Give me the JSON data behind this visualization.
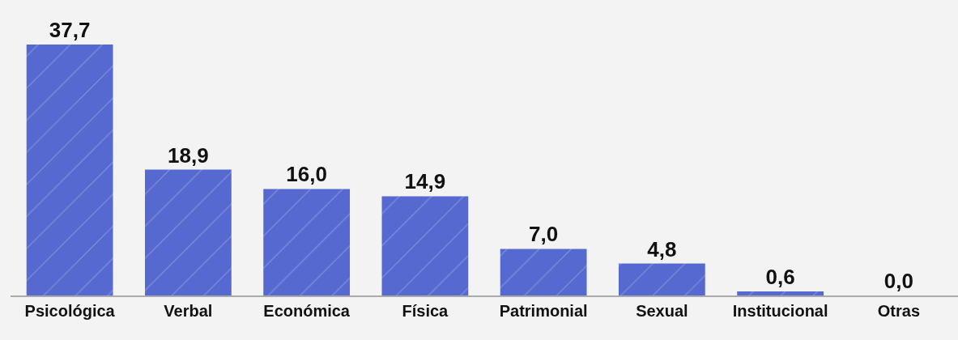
{
  "chart_data": {
    "type": "bar",
    "categories": [
      "Psicológica",
      "Verbal",
      "Económica",
      "Física",
      "Patrimonial",
      "Sexual",
      "Institucional",
      "Otras"
    ],
    "values": [
      37.7,
      18.9,
      16.0,
      14.9,
      7.0,
      4.8,
      0.6,
      0.0
    ],
    "value_labels": [
      "37,7",
      "18,9",
      "16,0",
      "14,9",
      "7,0",
      "4,8",
      "0,6",
      "0,0"
    ],
    "color": "#5569d0",
    "grid": false,
    "legend": false
  }
}
